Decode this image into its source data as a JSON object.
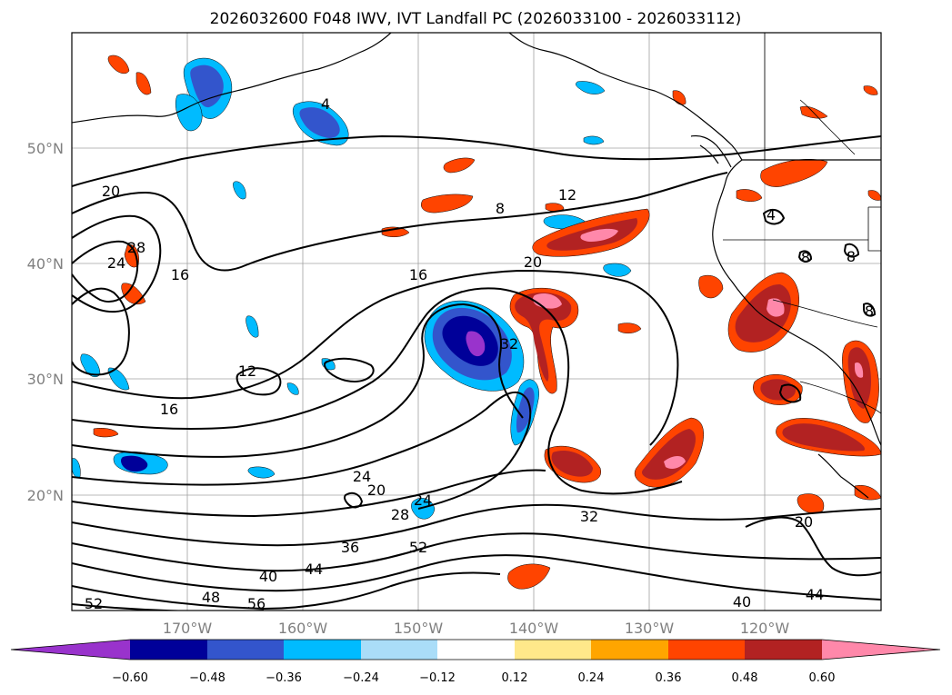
{
  "title": "2026032600 F048 IWV, IVT Landfall PC (2026033100 - 2026033112)",
  "lat_labels": [
    "50°N",
    "40°N",
    "30°N",
    "20°N"
  ],
  "lon_labels": [
    "170°W",
    "160°W",
    "150°W",
    "140°W",
    "130°W",
    "120°W"
  ],
  "contour_labels": [
    "4",
    "8",
    "12",
    "20",
    "28",
    "24",
    "16",
    "16",
    "12",
    "16",
    "20",
    "32",
    "24",
    "20",
    "24",
    "28",
    "36",
    "52",
    "40",
    "44",
    "48",
    "56",
    "52",
    "32",
    "40",
    "44",
    "20",
    "4",
    "8",
    "8",
    "8"
  ],
  "colorbar": {
    "ticks": [
      "−0.60",
      "−0.48",
      "−0.36",
      "−0.24",
      "−0.12",
      "0.12",
      "0.24",
      "0.36",
      "0.48",
      "0.60"
    ],
    "colors": [
      "#9933cc",
      "#000099",
      "#3355cc",
      "#00bbff",
      "#aaddf8",
      "#ffffff",
      "#ffe88a",
      "#ffa500",
      "#ff4400",
      "#b22222",
      "#ff88aa",
      "#ff88aa"
    ],
    "extend": "both"
  },
  "grid": "on"
}
